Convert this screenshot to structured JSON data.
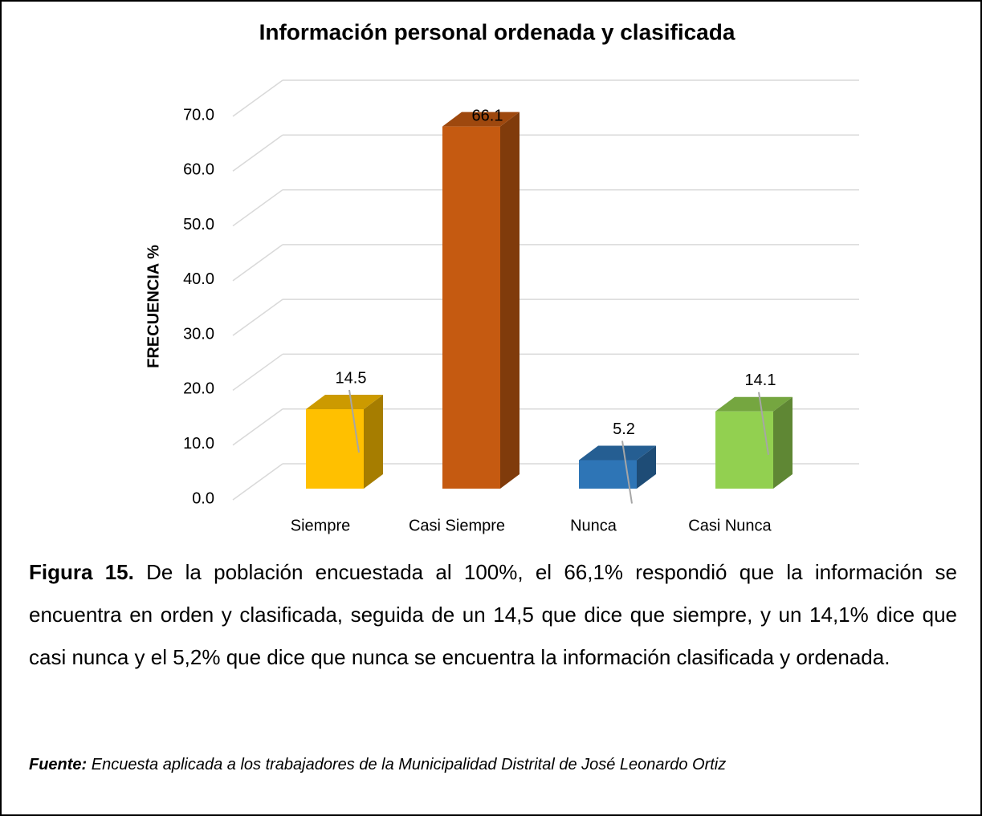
{
  "chart_data": {
    "type": "bar3d",
    "title": "Información personal ordenada y clasificada",
    "y_label": "FRECUENCIA %",
    "categories": [
      "Siempre",
      "Casi Siempre",
      "Nunca",
      "Casi Nunca"
    ],
    "values": [
      14.5,
      66.1,
      5.2,
      14.1
    ],
    "colors": [
      "#ffc000",
      "#c55a11",
      "#2e75b6",
      "#92d050"
    ],
    "ylim": [
      0,
      70
    ],
    "yticks": [
      {
        "value": 0,
        "label": "0.0"
      },
      {
        "value": 10,
        "label": "10.0"
      },
      {
        "value": 20,
        "label": "20.0"
      },
      {
        "value": 30,
        "label": "30.0"
      },
      {
        "value": 40,
        "label": "40.0"
      },
      {
        "value": 50,
        "label": "50.0"
      },
      {
        "value": 60,
        "label": "60.0"
      },
      {
        "value": 70,
        "label": "70.0"
      }
    ],
    "grid": true
  },
  "caption": {
    "label": "Figura 15.",
    "text": "De la población encuestada al 100%, el 66,1% respondió que la información se encuentra en orden y clasificada, seguida de un 14,5 que dice que siempre, y un 14,1% dice que casi nunca y el 5,2% que dice que nunca se encuentra la información clasificada y ordenada."
  },
  "source": {
    "label": "Fuente:",
    "text": "Encuesta aplicada a los trabajadores de la Municipalidad Distrital de José Leonardo Ortiz"
  }
}
